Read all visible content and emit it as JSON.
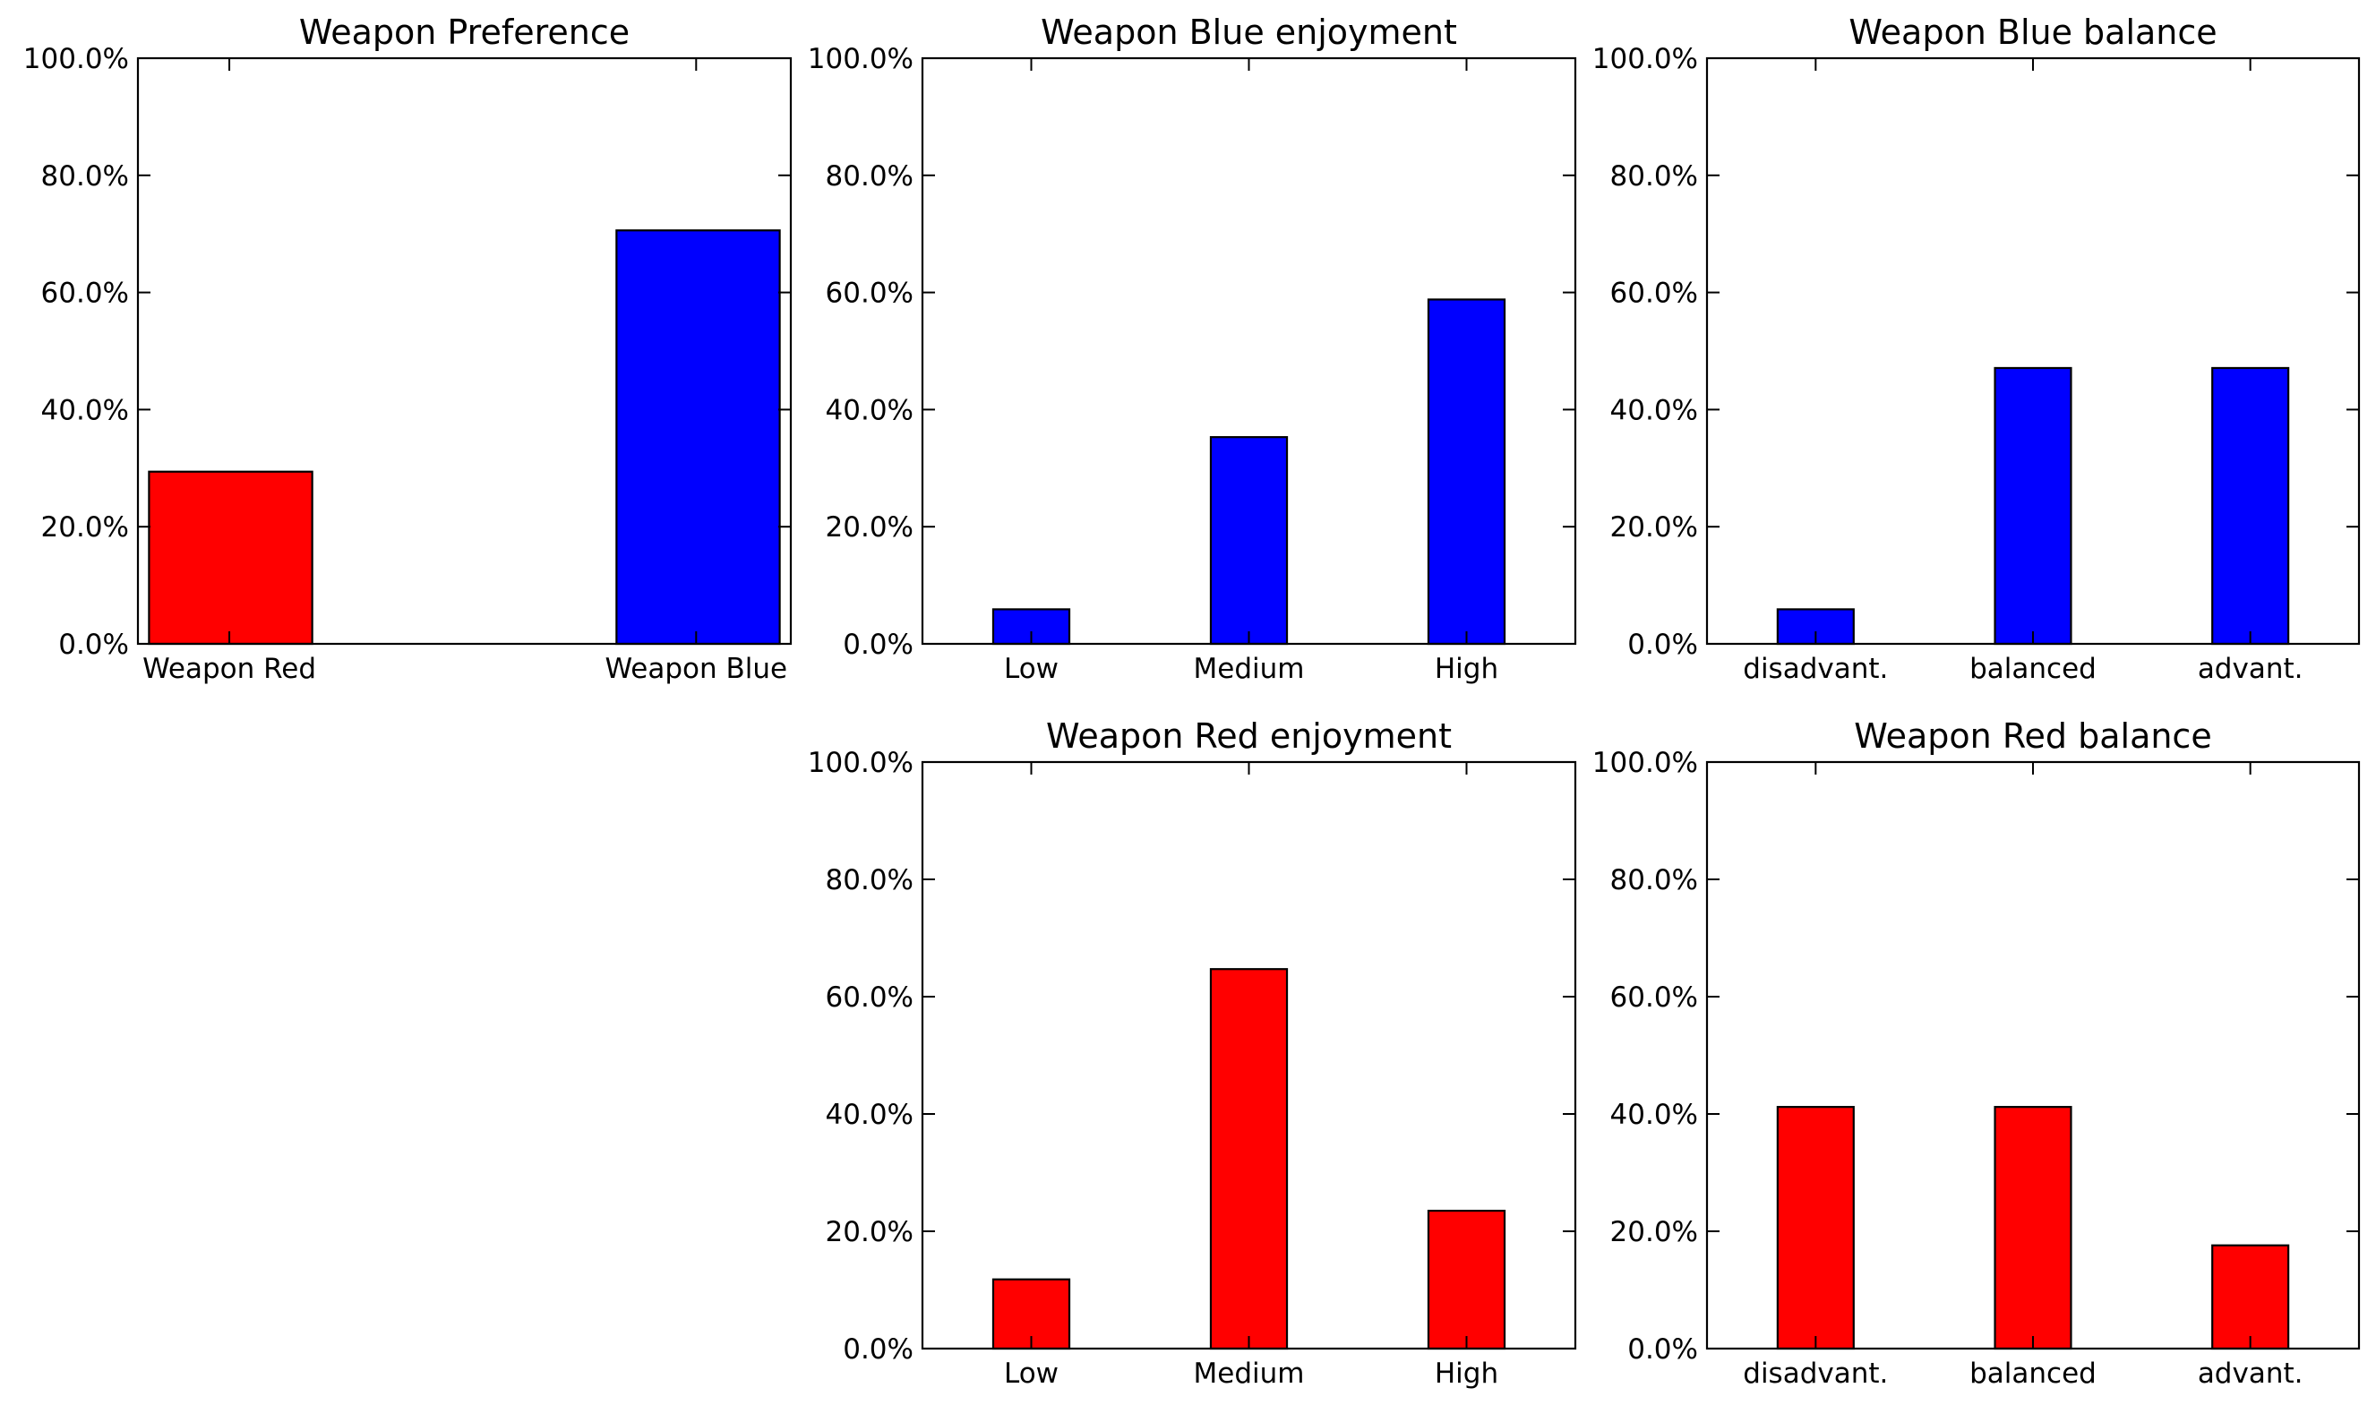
{
  "chart_data": [
    {
      "type": "bar",
      "title": "Weapon Preference",
      "categories": [
        "Weapon Red",
        "Weapon Blue"
      ],
      "values": [
        29.4,
        70.6
      ],
      "colors": [
        "#ff0000",
        "#0000ff"
      ],
      "ylim": [
        0,
        100
      ],
      "yticks": [
        "0.0%",
        "20.0%",
        "40.0%",
        "60.0%",
        "80.0%",
        "100.0%"
      ],
      "grid": false
    },
    {
      "type": "bar",
      "title": "Weapon Blue enjoyment",
      "categories": [
        "Low",
        "Medium",
        "High"
      ],
      "values": [
        5.9,
        35.3,
        58.8
      ],
      "colors": [
        "#0000ff",
        "#0000ff",
        "#0000ff"
      ],
      "ylim": [
        0,
        100
      ],
      "yticks": [
        "0.0%",
        "20.0%",
        "40.0%",
        "60.0%",
        "80.0%",
        "100.0%"
      ],
      "grid": false
    },
    {
      "type": "bar",
      "title": "Weapon Blue balance",
      "categories": [
        "disadvant.",
        "balanced",
        "advant."
      ],
      "values": [
        5.9,
        47.1,
        47.1
      ],
      "colors": [
        "#0000ff",
        "#0000ff",
        "#0000ff"
      ],
      "ylim": [
        0,
        100
      ],
      "yticks": [
        "0.0%",
        "20.0%",
        "40.0%",
        "60.0%",
        "80.0%",
        "100.0%"
      ],
      "grid": false
    },
    {
      "type": "bar",
      "title": "Weapon Red enjoyment",
      "categories": [
        "Low",
        "Medium",
        "High"
      ],
      "values": [
        11.8,
        64.7,
        23.5
      ],
      "colors": [
        "#ff0000",
        "#ff0000",
        "#ff0000"
      ],
      "ylim": [
        0,
        100
      ],
      "yticks": [
        "0.0%",
        "20.0%",
        "40.0%",
        "60.0%",
        "80.0%",
        "100.0%"
      ],
      "grid": false
    },
    {
      "type": "bar",
      "title": "Weapon Red balance",
      "categories": [
        "disadvant.",
        "balanced",
        "advant."
      ],
      "values": [
        41.2,
        41.2,
        17.6
      ],
      "colors": [
        "#ff0000",
        "#ff0000",
        "#ff0000"
      ],
      "ylim": [
        0,
        100
      ],
      "yticks": [
        "0.0%",
        "20.0%",
        "40.0%",
        "60.0%",
        "80.0%",
        "100.0%"
      ],
      "grid": false
    }
  ]
}
